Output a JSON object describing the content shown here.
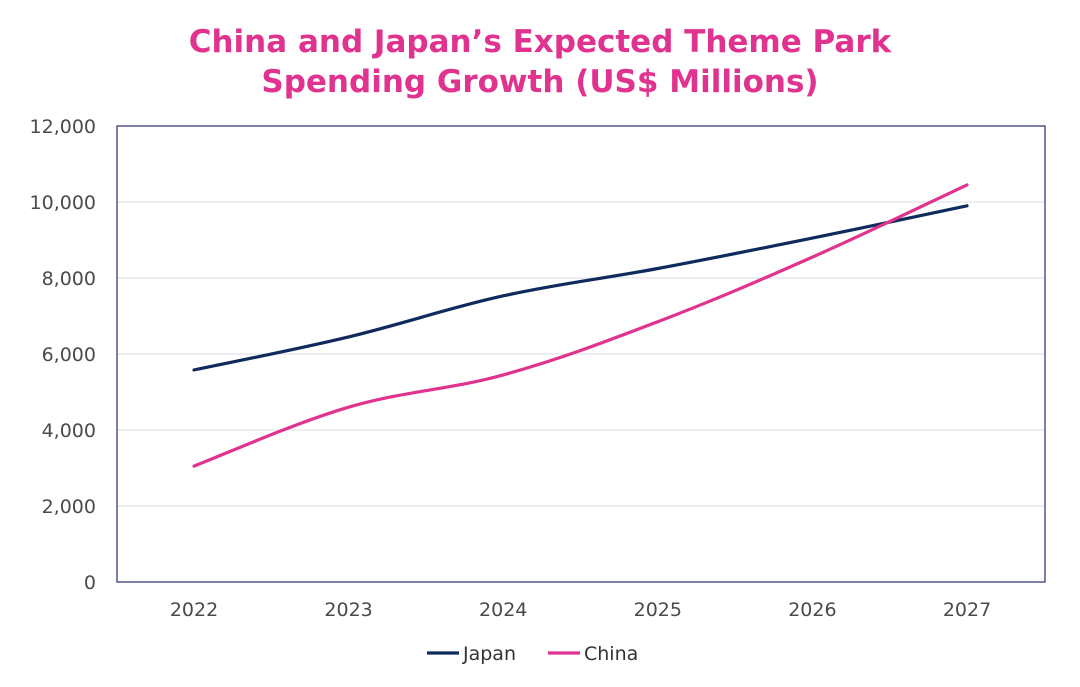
{
  "chart_data": {
    "type": "line",
    "title_lines": [
      "China and Japan’s Expected Theme Park",
      "Spending Growth (US$ Millions)"
    ],
    "categories": [
      "2022",
      "2023",
      "2024",
      "2025",
      "2026",
      "2027"
    ],
    "ylim": [
      0,
      12000
    ],
    "yticks": [
      0,
      2000,
      4000,
      6000,
      8000,
      10000,
      12000
    ],
    "ytick_labels": [
      "0",
      "2,000",
      "4,000",
      "6,000",
      "8,000",
      "10,000",
      "12,000"
    ],
    "grid": true,
    "legend_position": "bottom-center",
    "series": [
      {
        "name": "Japan",
        "color": "#0f2a5c",
        "values": [
          5580,
          6450,
          7530,
          8250,
          9050,
          9900
        ]
      },
      {
        "name": "China",
        "color": "#e0338f",
        "values": [
          3050,
          4600,
          5450,
          6850,
          8550,
          10450
        ]
      }
    ]
  }
}
